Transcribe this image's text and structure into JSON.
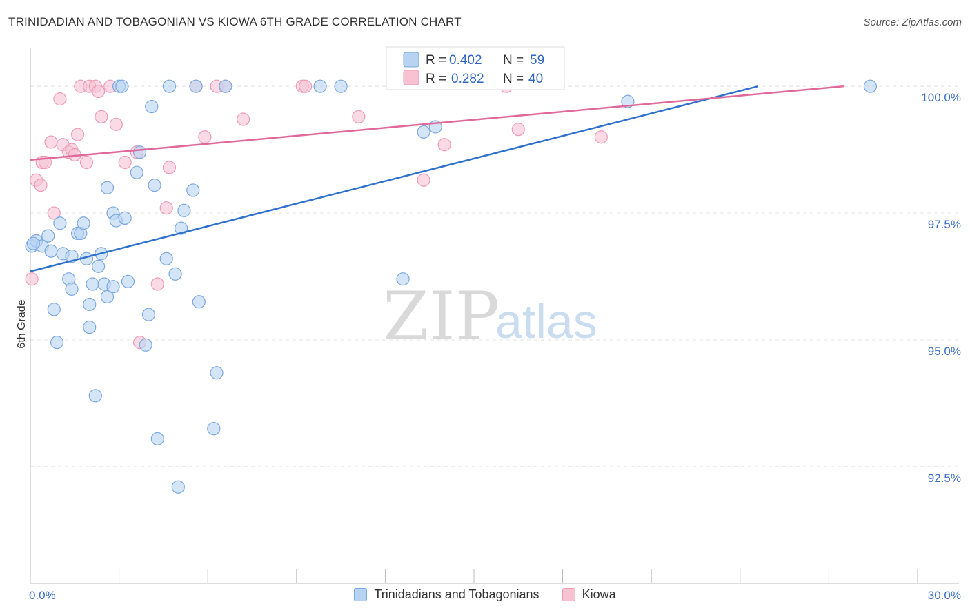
{
  "title": "TRINIDADIAN AND TOBAGONIAN VS KIOWA 6TH GRADE CORRELATION CHART",
  "source": "Source: ZipAtlas.com",
  "watermark": {
    "zip": "ZIP",
    "atlas": "atlas"
  },
  "colors": {
    "blue_fill": "#b8d3f2",
    "blue_stroke": "#7aa8e0",
    "blue_line": "#2f72cc",
    "pink_fill": "#f7c3d3",
    "pink_stroke": "#ee9ab4",
    "pink_line": "#e0689a",
    "tick_text": "#3a6fc4",
    "grid": "#e3e3e3"
  },
  "legend": {
    "rows": [
      {
        "r_label": "R = ",
        "r_value": "0.402",
        "n_label": "N = ",
        "n_value": "59"
      },
      {
        "r_label": "R = ",
        "r_value": "0.282",
        "n_label": "N = ",
        "n_value": "40"
      }
    ]
  },
  "chart_data": {
    "type": "scatter",
    "title": "TRINIDADIAN AND TOBAGONIAN VS KIOWA 6TH GRADE CORRELATION CHART",
    "xlabel": "",
    "ylabel": "6th Grade",
    "xlim": [
      0,
      30
    ],
    "ylim": [
      90.2,
      100.75
    ],
    "x_tick_labels": [
      "0.0%",
      "30.0%"
    ],
    "y_ticks": [
      92.5,
      95.0,
      97.5,
      100.0
    ],
    "y_tick_labels": [
      "92.5%",
      "95.0%",
      "97.5%",
      "100.0%"
    ],
    "grid": "horizontal dashed",
    "legend_position": "top-center",
    "series": [
      {
        "name": "Trinidadians and Tobagonians",
        "color": "#b8d3f2",
        "trend": {
          "x": [
            0,
            24.6
          ],
          "y": [
            96.35,
            100.0
          ]
        },
        "points": [
          [
            0.05,
            96.85
          ],
          [
            0.2,
            96.95
          ],
          [
            0.4,
            96.85
          ],
          [
            0.6,
            97.05
          ],
          [
            0.7,
            96.75
          ],
          [
            1.0,
            97.3
          ],
          [
            1.1,
            96.7
          ],
          [
            1.3,
            96.2
          ],
          [
            1.4,
            96.65
          ],
          [
            1.4,
            96.0
          ],
          [
            1.6,
            97.1
          ],
          [
            1.7,
            97.1
          ],
          [
            1.8,
            97.3
          ],
          [
            1.9,
            96.6
          ],
          [
            2.0,
            95.7
          ],
          [
            2.0,
            95.25
          ],
          [
            2.1,
            96.1
          ],
          [
            2.2,
            93.9
          ],
          [
            2.3,
            96.45
          ],
          [
            2.4,
            96.7
          ],
          [
            2.5,
            96.1
          ],
          [
            2.6,
            95.85
          ],
          [
            2.6,
            98.0
          ],
          [
            2.8,
            97.5
          ],
          [
            2.8,
            96.05
          ],
          [
            2.9,
            97.35
          ],
          [
            3.0,
            100.0
          ],
          [
            3.1,
            100.0
          ],
          [
            3.2,
            97.4
          ],
          [
            3.3,
            96.15
          ],
          [
            3.6,
            98.3
          ],
          [
            3.7,
            98.7
          ],
          [
            3.9,
            94.9
          ],
          [
            4.0,
            95.5
          ],
          [
            4.1,
            99.6
          ],
          [
            4.2,
            98.05
          ],
          [
            4.3,
            93.05
          ],
          [
            4.6,
            96.6
          ],
          [
            4.7,
            100.0
          ],
          [
            4.9,
            96.3
          ],
          [
            5.0,
            92.1
          ],
          [
            5.1,
            97.2
          ],
          [
            5.2,
            97.55
          ],
          [
            5.5,
            97.95
          ],
          [
            5.7,
            95.75
          ],
          [
            6.2,
            93.25
          ],
          [
            6.3,
            94.35
          ],
          [
            6.6,
            100.0
          ],
          [
            0.9,
            94.95
          ],
          [
            0.8,
            95.6
          ],
          [
            9.8,
            100.0
          ],
          [
            10.5,
            100.0
          ],
          [
            12.6,
            96.2
          ],
          [
            13.3,
            99.1
          ],
          [
            13.7,
            99.2
          ],
          [
            20.2,
            99.7
          ],
          [
            28.4,
            100.0
          ],
          [
            0.1,
            96.9
          ],
          [
            5.6,
            100.0
          ]
        ]
      },
      {
        "name": "Kiowa",
        "color": "#f7c3d3",
        "trend": {
          "x": [
            0,
            27.5
          ],
          "y": [
            98.55,
            100.0
          ]
        },
        "points": [
          [
            0.05,
            96.2
          ],
          [
            0.2,
            98.15
          ],
          [
            0.35,
            98.05
          ],
          [
            0.4,
            98.5
          ],
          [
            0.5,
            98.5
          ],
          [
            0.7,
            98.9
          ],
          [
            0.8,
            97.5
          ],
          [
            1.0,
            99.75
          ],
          [
            1.1,
            98.85
          ],
          [
            1.3,
            98.7
          ],
          [
            1.4,
            98.75
          ],
          [
            1.5,
            98.65
          ],
          [
            1.6,
            99.05
          ],
          [
            1.7,
            100.0
          ],
          [
            1.9,
            98.5
          ],
          [
            2.0,
            100.0
          ],
          [
            2.2,
            100.0
          ],
          [
            2.3,
            99.9
          ],
          [
            2.4,
            99.4
          ],
          [
            2.7,
            100.0
          ],
          [
            2.9,
            99.25
          ],
          [
            3.2,
            98.5
          ],
          [
            3.6,
            98.7
          ],
          [
            3.7,
            94.95
          ],
          [
            4.3,
            96.1
          ],
          [
            4.6,
            97.6
          ],
          [
            4.7,
            98.4
          ],
          [
            5.6,
            100.0
          ],
          [
            5.9,
            99.0
          ],
          [
            6.3,
            100.0
          ],
          [
            6.6,
            100.0
          ],
          [
            7.2,
            99.35
          ],
          [
            9.2,
            100.0
          ],
          [
            9.3,
            100.0
          ],
          [
            11.1,
            99.4
          ],
          [
            13.3,
            98.15
          ],
          [
            14.0,
            98.85
          ],
          [
            16.1,
            100.0
          ],
          [
            16.5,
            99.15
          ],
          [
            19.3,
            99.0
          ]
        ]
      }
    ]
  },
  "bottom_legend": {
    "items": [
      {
        "label": "Trinidadians and Tobagonians"
      },
      {
        "label": "Kiowa"
      }
    ]
  }
}
